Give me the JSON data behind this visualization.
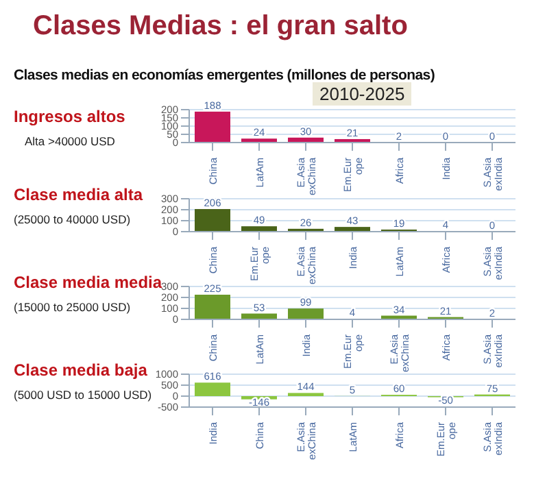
{
  "chart_data": [
    {
      "type": "bar",
      "annotations": [
        "Clases Medias : el gran salto",
        "Clases medias en economías emergentes (millones de personas)",
        "2010-2025"
      ],
      "title": "Ingresos altos",
      "subtitle": "Alta  >40000 USD",
      "categories": [
        "China",
        "LatAm",
        "E.Asia exChina",
        "Em.Eur ope",
        "Africa",
        "India",
        "S.Asia exIndia"
      ],
      "values": [
        188,
        24,
        30,
        21,
        2,
        0,
        0
      ],
      "color": "#c8175a",
      "ylim": [
        0,
        200
      ],
      "yticks": [
        0,
        50,
        100,
        150,
        200
      ],
      "grid": "y",
      "data_labels": true
    },
    {
      "type": "bar",
      "title": "Clase media alta",
      "subtitle": "(25000 to 40000 USD)",
      "categories": [
        "China",
        "Em.Eur ope",
        "E.Asia exChina",
        "India",
        "LatAm",
        "Africa",
        "S.Asia exIndia"
      ],
      "values": [
        206,
        49,
        26,
        43,
        19,
        4,
        0
      ],
      "color": "#4a6419",
      "ylim": [
        0,
        300
      ],
      "yticks": [
        0,
        100,
        200,
        300
      ],
      "grid": "y",
      "data_labels": true
    },
    {
      "type": "bar",
      "title": "Clase media media",
      "subtitle": "(15000  to 25000 USD)",
      "categories": [
        "China",
        "LatAm",
        "India",
        "Em.Eur ope",
        "E.Asia exChina",
        "Africa",
        "S.Asia exIndia"
      ],
      "values": [
        225,
        53,
        99,
        4,
        34,
        21,
        2
      ],
      "color": "#6b9a2a",
      "ylim": [
        0,
        300
      ],
      "yticks": [
        0,
        100,
        200,
        300
      ],
      "grid": "y",
      "data_labels": true
    },
    {
      "type": "bar",
      "title": "Clase media baja",
      "subtitle": "(5000 USD to 15000 USD)",
      "categories": [
        "India",
        "China",
        "E.Asia exChina",
        "LatAm",
        "Africa",
        "Em.Eur ope",
        "S.Asia exIndia"
      ],
      "values": [
        616,
        -146,
        144,
        5,
        60,
        -50,
        75
      ],
      "color": "#8cc63f",
      "ylim": [
        -500,
        1000
      ],
      "yticks": [
        -500,
        0,
        500,
        1000
      ],
      "grid": "y",
      "data_labels": true
    }
  ]
}
